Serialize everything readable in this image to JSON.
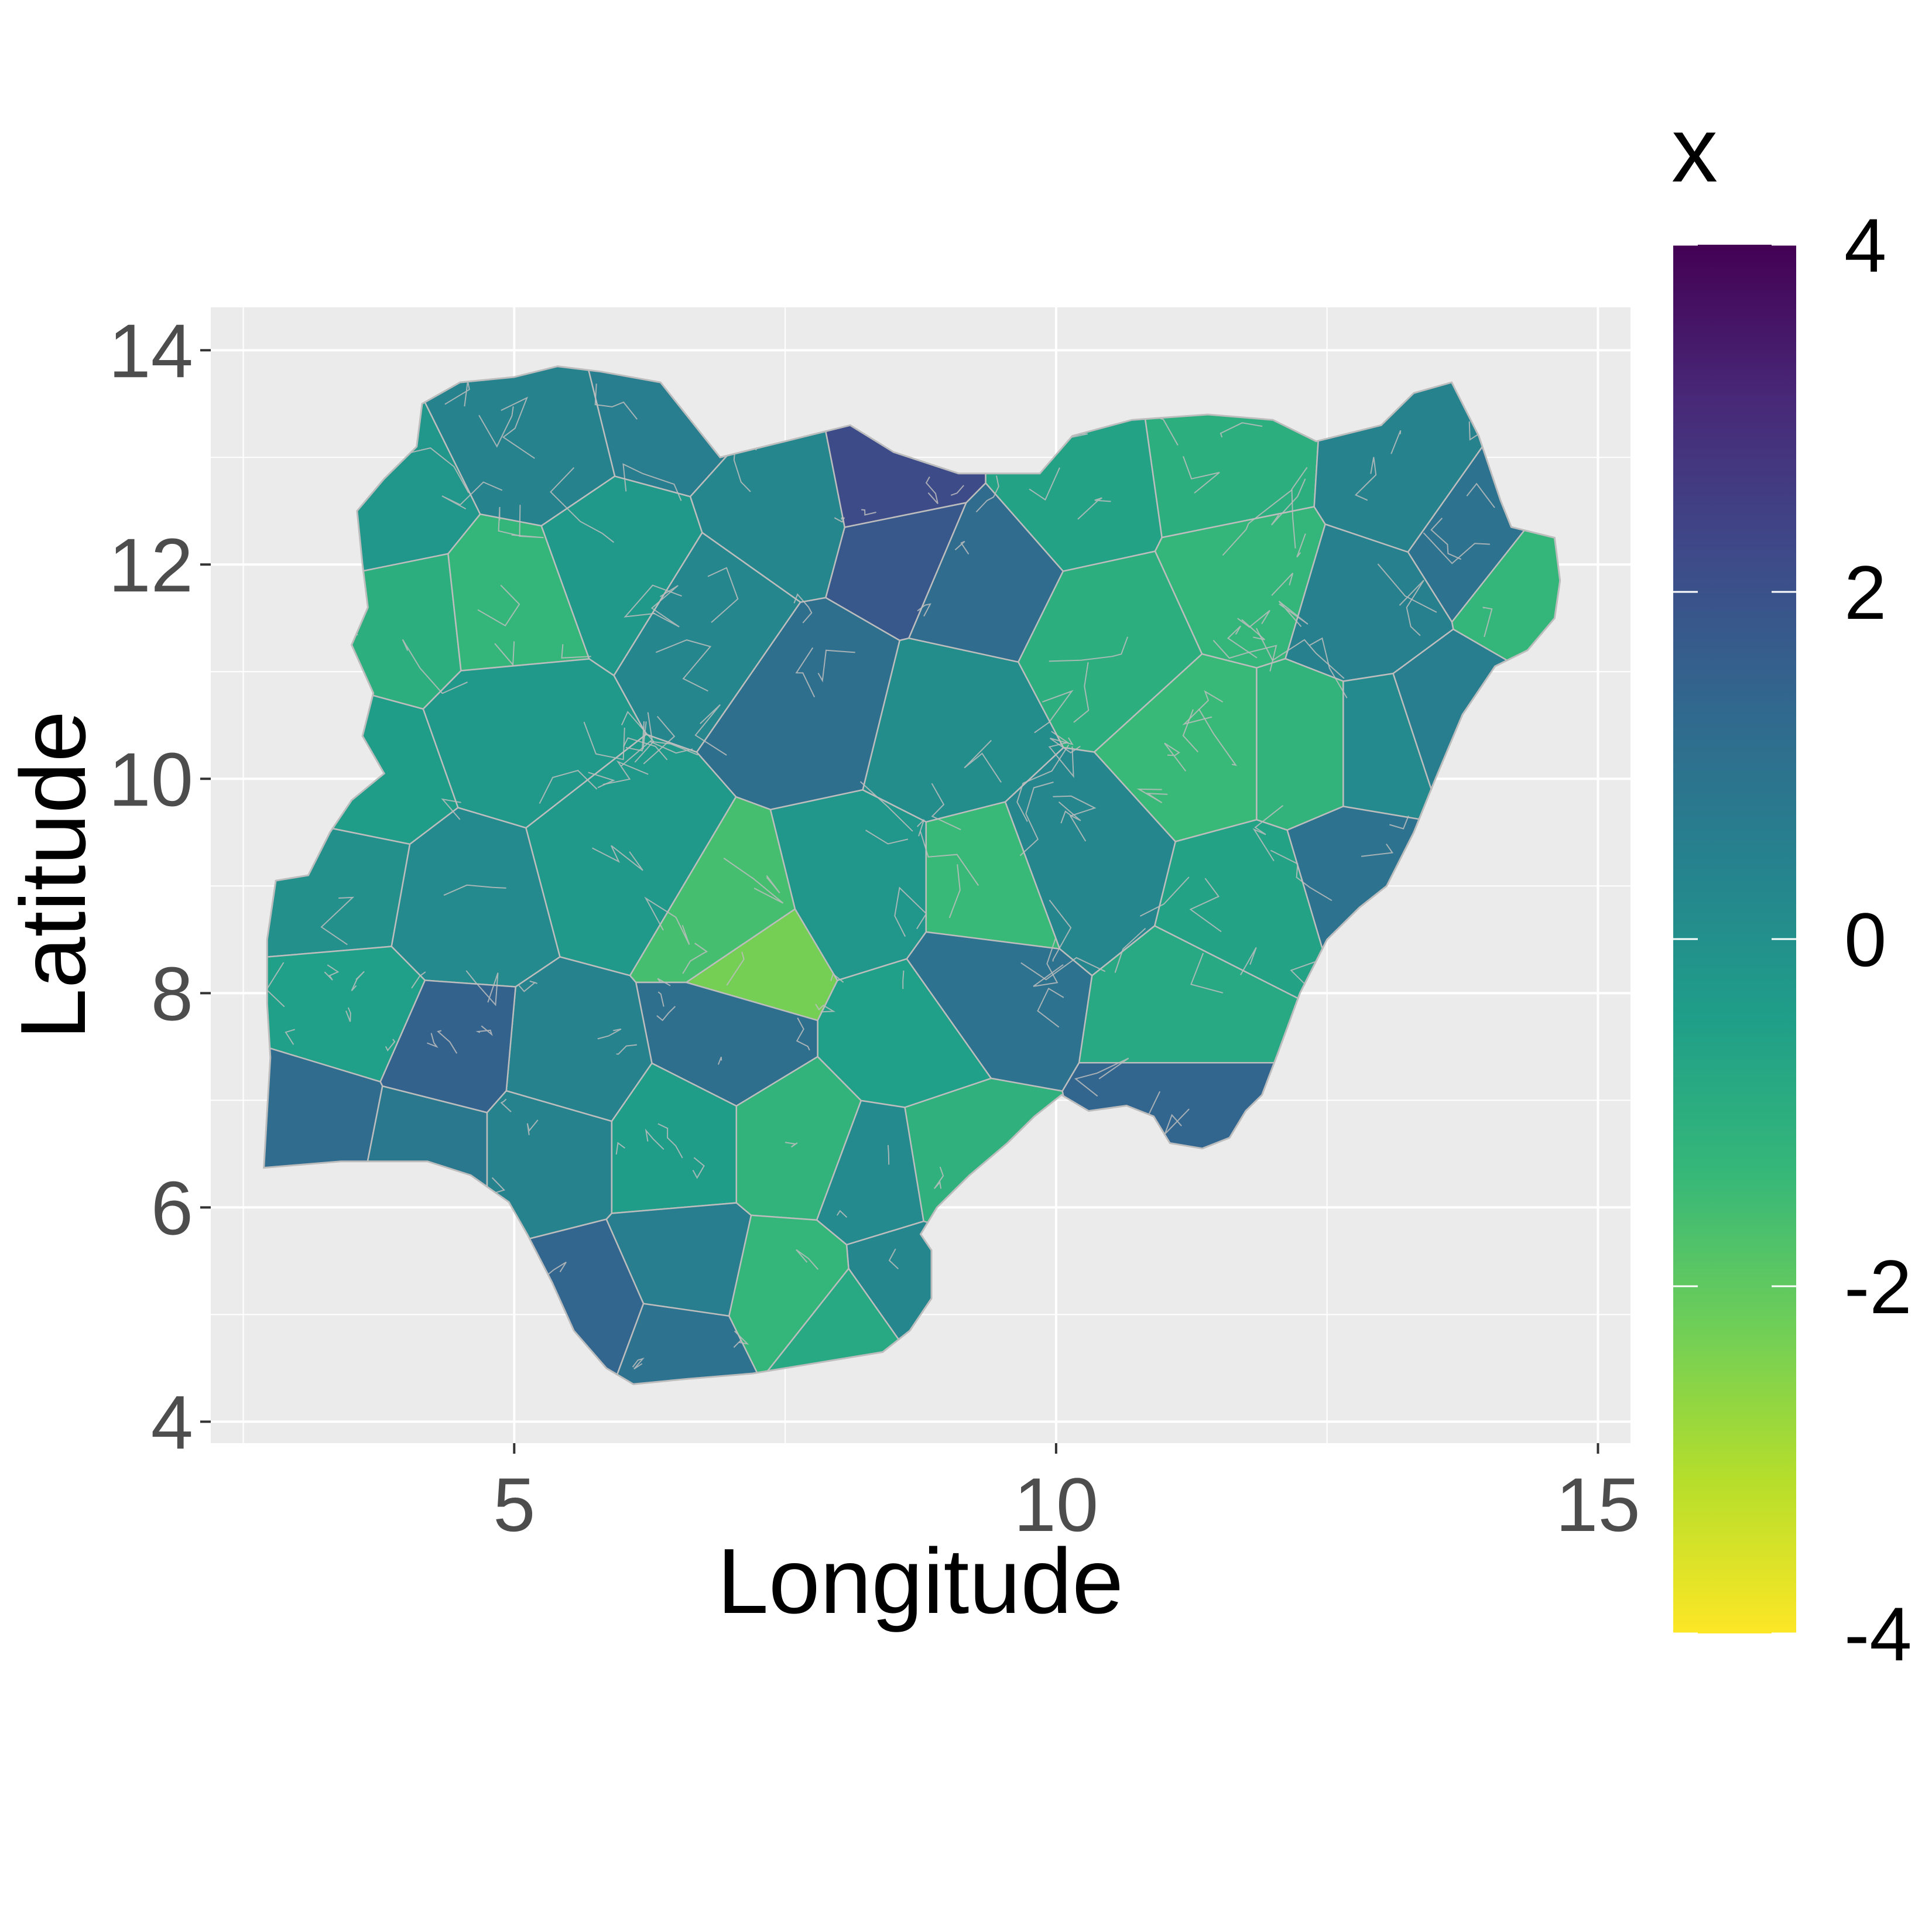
{
  "chart_data": {
    "type": "heatmap",
    "subtype": "choropleth",
    "title": "",
    "xlabel": "Longitude",
    "ylabel": "Latitude",
    "xlim": [
      2.2,
      15.3
    ],
    "ylim": [
      3.8,
      14.4
    ],
    "x_ticks": [
      5,
      10,
      15
    ],
    "x_tick_labels": [
      "5",
      "10",
      "15"
    ],
    "y_ticks": [
      4,
      6,
      8,
      10,
      12,
      14
    ],
    "y_tick_labels": [
      "4",
      "6",
      "8",
      "10",
      "12",
      "14"
    ],
    "grid": true,
    "panel_background": "#ebebeb",
    "region_border_color": "#bdbdbd",
    "legend": {
      "title": "x",
      "position": "right",
      "palette": "viridis",
      "reversed": true,
      "range": [
        -4,
        4
      ],
      "breaks": [
        4,
        2,
        0,
        -2,
        -4
      ],
      "break_labels": [
        "4",
        "2",
        "0",
        "-2",
        "-4"
      ],
      "colors": [
        "#440154",
        "#482878",
        "#3e4a89",
        "#31688e",
        "#26828e",
        "#1f9e89",
        "#35b779",
        "#6ece58",
        "#b5de2b",
        "#fde725"
      ]
    },
    "regions": [
      {
        "lon": 5.2,
        "lat": 13.2,
        "value": 0.4
      },
      {
        "lon": 3.8,
        "lat": 12.5,
        "value": -0.2
      },
      {
        "lon": 4.0,
        "lat": 11.5,
        "value": -1.0
      },
      {
        "lon": 4.9,
        "lat": 11.6,
        "value": -1.3
      },
      {
        "lon": 6.0,
        "lat": 12.0,
        "value": -0.3
      },
      {
        "lon": 6.4,
        "lat": 13.5,
        "value": 0.6
      },
      {
        "lon": 7.5,
        "lat": 12.5,
        "value": 0.3
      },
      {
        "lon": 8.5,
        "lat": 12.7,
        "value": 2.2
      },
      {
        "lon": 8.6,
        "lat": 12.2,
        "value": 1.8
      },
      {
        "lon": 9.3,
        "lat": 11.9,
        "value": 1.2
      },
      {
        "lon": 10.2,
        "lat": 12.7,
        "value": -0.6
      },
      {
        "lon": 11.6,
        "lat": 12.9,
        "value": -1.0
      },
      {
        "lon": 11.8,
        "lat": 11.9,
        "value": -1.3
      },
      {
        "lon": 13.2,
        "lat": 12.8,
        "value": 0.4
      },
      {
        "lon": 13.9,
        "lat": 12.3,
        "value": 1.0
      },
      {
        "lon": 14.4,
        "lat": 11.9,
        "value": -1.3
      },
      {
        "lon": 12.8,
        "lat": 11.6,
        "value": 0.5
      },
      {
        "lon": 10.5,
        "lat": 11.3,
        "value": -1.0
      },
      {
        "lon": 11.4,
        "lat": 10.3,
        "value": -1.4
      },
      {
        "lon": 12.3,
        "lat": 10.3,
        "value": -1.2
      },
      {
        "lon": 13.0,
        "lat": 10.3,
        "value": 0.2
      },
      {
        "lon": 13.6,
        "lat": 10.5,
        "value": 0.6
      },
      {
        "lon": 12.8,
        "lat": 9.1,
        "value": 1.0
      },
      {
        "lon": 11.8,
        "lat": 8.8,
        "value": -0.6
      },
      {
        "lon": 11.3,
        "lat": 7.8,
        "value": -0.8
      },
      {
        "lon": 11.3,
        "lat": 6.9,
        "value": 1.4
      },
      {
        "lon": 10.2,
        "lat": 9.2,
        "value": 0.3
      },
      {
        "lon": 9.0,
        "lat": 10.5,
        "value": 0.1
      },
      {
        "lon": 7.8,
        "lat": 10.8,
        "value": 1.1
      },
      {
        "lon": 6.8,
        "lat": 11.5,
        "value": 0.3
      },
      {
        "lon": 5.0,
        "lat": 10.5,
        "value": -0.3
      },
      {
        "lon": 3.6,
        "lat": 10.0,
        "value": -0.4
      },
      {
        "lon": 3.4,
        "lat": 9.0,
        "value": 0.0
      },
      {
        "lon": 4.5,
        "lat": 8.8,
        "value": 0.2
      },
      {
        "lon": 6.0,
        "lat": 9.2,
        "value": -0.3
      },
      {
        "lon": 7.2,
        "lat": 8.3,
        "value": -2.3
      },
      {
        "lon": 7.0,
        "lat": 8.6,
        "value": -1.6
      },
      {
        "lon": 8.2,
        "lat": 8.9,
        "value": -0.2
      },
      {
        "lon": 9.4,
        "lat": 8.9,
        "value": -1.4
      },
      {
        "lon": 9.3,
        "lat": 8.1,
        "value": 1.0
      },
      {
        "lon": 8.6,
        "lat": 7.6,
        "value": -0.5
      },
      {
        "lon": 7.0,
        "lat": 7.6,
        "value": 1.1
      },
      {
        "lon": 5.5,
        "lat": 7.3,
        "value": 0.4
      },
      {
        "lon": 4.4,
        "lat": 7.4,
        "value": 1.5
      },
      {
        "lon": 3.5,
        "lat": 7.8,
        "value": -0.5
      },
      {
        "lon": 3.2,
        "lat": 6.8,
        "value": 1.2
      },
      {
        "lon": 4.2,
        "lat": 6.6,
        "value": 0.8
      },
      {
        "lon": 5.3,
        "lat": 6.6,
        "value": 0.4
      },
      {
        "lon": 6.5,
        "lat": 6.6,
        "value": -0.4
      },
      {
        "lon": 7.6,
        "lat": 6.6,
        "value": -1.2
      },
      {
        "lon": 8.4,
        "lat": 6.3,
        "value": 0.2
      },
      {
        "lon": 9.0,
        "lat": 6.4,
        "value": -1.1
      },
      {
        "lon": 8.7,
        "lat": 5.3,
        "value": 0.3
      },
      {
        "lon": 7.5,
        "lat": 5.2,
        "value": -1.3
      },
      {
        "lon": 6.6,
        "lat": 5.4,
        "value": 0.6
      },
      {
        "lon": 5.7,
        "lat": 5.0,
        "value": 1.4
      },
      {
        "lon": 6.5,
        "lat": 4.7,
        "value": 1.0
      },
      {
        "lon": 8.0,
        "lat": 4.8,
        "value": -0.8
      }
    ]
  }
}
